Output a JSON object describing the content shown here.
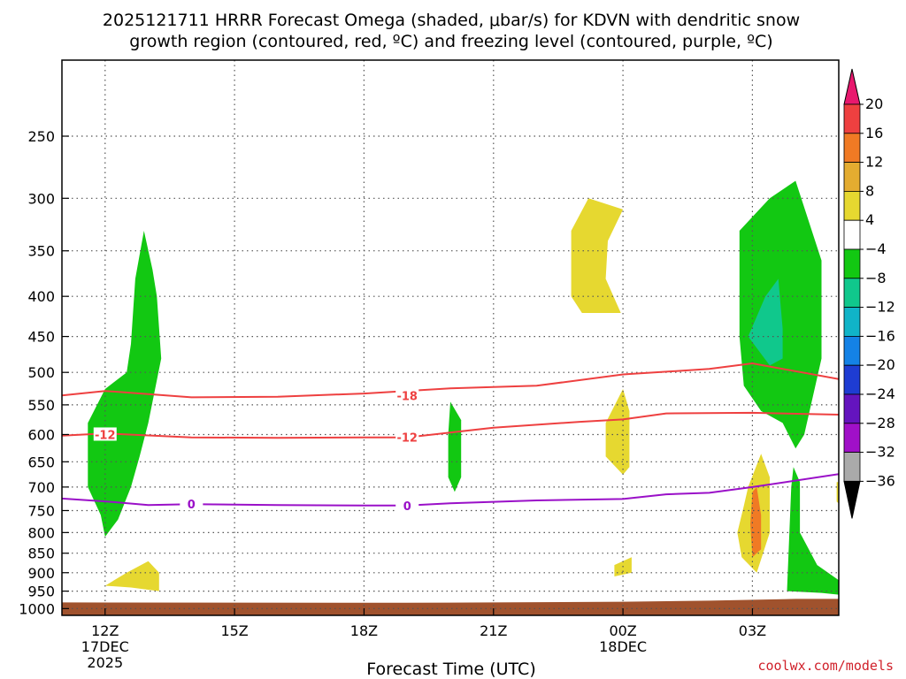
{
  "chart_data": {
    "type": "contour",
    "title_line1": "2025121711 HRRR Forecast Omega (shaded, μbar/s) for KDVN with dendritic snow",
    "title_line2": "growth region (contoured, red, ºC) and freezing level (contoured, purple, ºC)",
    "xlabel": "Forecast Time (UTC)",
    "x_ticks": [
      {
        "h": 0,
        "label": "12Z",
        "sub1": "17DEC",
        "sub2": "2025"
      },
      {
        "h": 3,
        "label": "15Z",
        "sub1": "",
        "sub2": ""
      },
      {
        "h": 6,
        "label": "18Z",
        "sub1": "",
        "sub2": ""
      },
      {
        "h": 9,
        "label": "21Z",
        "sub1": "",
        "sub2": ""
      },
      {
        "h": 12,
        "label": "00Z",
        "sub1": "18DEC",
        "sub2": ""
      },
      {
        "h": 15,
        "label": "03Z",
        "sub1": "",
        "sub2": ""
      }
    ],
    "xlim": [
      -1,
      17
    ],
    "y_ticks": [
      250,
      300,
      350,
      400,
      450,
      500,
      550,
      600,
      650,
      700,
      750,
      800,
      850,
      900,
      950,
      1000
    ],
    "ylim": [
      200,
      1020
    ],
    "yscale": "log",
    "grid": true,
    "colorbar": {
      "labels": [
        "20",
        "16",
        "12",
        "8",
        "4",
        "−4",
        "−8",
        "−12",
        "−16",
        "−20",
        "−24",
        "−28",
        "−32",
        "−36"
      ],
      "colors": [
        "#e8186e",
        "#ee4040",
        "#f07a24",
        "#e4ac30",
        "#e6d830",
        "#ffffff",
        "#12c812",
        "#10c88c",
        "#10b4c8",
        "#1482e6",
        "#1e3cd2",
        "#6414be",
        "#a010c8",
        "#aaaaaa",
        "#000000"
      ]
    },
    "contours": [
      {
        "level": "-18",
        "color": "#ee4040",
        "points": [
          [
            -1,
            535
          ],
          [
            0,
            528
          ],
          [
            2,
            538
          ],
          [
            4,
            537
          ],
          [
            6,
            532
          ],
          [
            8,
            524
          ],
          [
            10,
            520
          ],
          [
            12,
            503
          ],
          [
            14,
            495
          ],
          [
            15,
            487
          ],
          [
            17,
            510
          ]
        ],
        "label_h": 7,
        "label_p": 535
      },
      {
        "level": "-12",
        "color": "#ee4040",
        "points": [
          [
            -1,
            602
          ],
          [
            0,
            598
          ],
          [
            2,
            605
          ],
          [
            4,
            606
          ],
          [
            6,
            605
          ],
          [
            7,
            605
          ],
          [
            9,
            588
          ],
          [
            11,
            578
          ],
          [
            12,
            574
          ],
          [
            13,
            564
          ],
          [
            15,
            563
          ],
          [
            17,
            566
          ]
        ],
        "label_h": 0,
        "label_p": 600
      },
      {
        "level": "-12",
        "color": "#ee4040",
        "points": [],
        "label_h": 7,
        "label_p": 605
      },
      {
        "level": "0",
        "color": "#9a10c8",
        "points": [
          [
            -1,
            724
          ],
          [
            0,
            730
          ],
          [
            1,
            738
          ],
          [
            2,
            736
          ],
          [
            4,
            738
          ],
          [
            6,
            739
          ],
          [
            7,
            739
          ],
          [
            8,
            734
          ],
          [
            10,
            728
          ],
          [
            12,
            725
          ],
          [
            13,
            715
          ],
          [
            14,
            712
          ],
          [
            15,
            700
          ],
          [
            17,
            674
          ]
        ],
        "label_h": 2,
        "label_p": 736
      },
      {
        "level": "0",
        "color": "#9a10c8",
        "points": [],
        "label_h": 7,
        "label_p": 739
      }
    ],
    "shaded_regions": [
      {
        "color": "#12c812",
        "points": [
          [
            -0.1,
            760
          ],
          [
            0,
            810
          ],
          [
            0.3,
            770
          ],
          [
            0.6,
            700
          ],
          [
            0.8,
            640
          ],
          [
            1.0,
            580
          ],
          [
            1.3,
            480
          ],
          [
            1.2,
            400
          ],
          [
            1.1,
            370
          ],
          [
            0.9,
            330
          ],
          [
            0.7,
            380
          ],
          [
            0.6,
            460
          ],
          [
            0.5,
            500
          ],
          [
            0,
            525
          ],
          [
            -0.4,
            580
          ],
          [
            -0.4,
            700
          ]
        ]
      },
      {
        "color": "#e6d830",
        "points": [
          [
            0,
            935
          ],
          [
            0.6,
            940
          ],
          [
            1.25,
            950
          ],
          [
            1.25,
            900
          ],
          [
            1.0,
            870
          ],
          [
            0.5,
            900
          ]
        ]
      },
      {
        "color": "#12c812",
        "points": [
          [
            8.0,
            545
          ],
          [
            8.25,
            575
          ],
          [
            8.25,
            680
          ],
          [
            8.1,
            710
          ],
          [
            7.95,
            680
          ],
          [
            7.95,
            600
          ]
        ]
      },
      {
        "color": "#e6d830",
        "points": [
          [
            10.8,
            330
          ],
          [
            11.2,
            300
          ],
          [
            12.0,
            310
          ],
          [
            11.65,
            340
          ],
          [
            11.6,
            380
          ],
          [
            11.95,
            420
          ],
          [
            11.05,
            420
          ],
          [
            10.8,
            400
          ]
        ]
      },
      {
        "color": "#e6d830",
        "points": [
          [
            12.0,
            525
          ],
          [
            12.15,
            560
          ],
          [
            12.15,
            660
          ],
          [
            12.0,
            675
          ],
          [
            11.6,
            640
          ],
          [
            11.6,
            580
          ]
        ]
      },
      {
        "color": "#e6d830",
        "points": [
          [
            11.8,
            880
          ],
          [
            12.2,
            860
          ],
          [
            12.2,
            900
          ],
          [
            11.8,
            910
          ]
        ]
      },
      {
        "color": "#12c812",
        "points": [
          [
            14.7,
            330
          ],
          [
            15.4,
            300
          ],
          [
            16.0,
            285
          ],
          [
            16.6,
            360
          ],
          [
            16.6,
            480
          ],
          [
            16.2,
            600
          ],
          [
            16.0,
            625
          ],
          [
            15.7,
            580
          ],
          [
            15.2,
            560
          ],
          [
            14.8,
            520
          ],
          [
            14.7,
            450
          ]
        ]
      },
      {
        "color": "#10c88c",
        "points": [
          [
            15.6,
            380
          ],
          [
            15.7,
            440
          ],
          [
            15.7,
            480
          ],
          [
            15.4,
            490
          ],
          [
            14.9,
            450
          ],
          [
            15.3,
            400
          ]
        ]
      },
      {
        "color": "#e6d830",
        "points": [
          [
            14.9,
            700
          ],
          [
            15.2,
            635
          ],
          [
            15.4,
            680
          ],
          [
            15.4,
            800
          ],
          [
            15.1,
            900
          ],
          [
            14.75,
            860
          ],
          [
            14.65,
            800
          ],
          [
            14.8,
            740
          ]
        ]
      },
      {
        "color": "#f07a24",
        "points": [
          [
            15.0,
            710
          ],
          [
            15.1,
            700
          ],
          [
            15.2,
            760
          ],
          [
            15.2,
            840
          ],
          [
            15.0,
            860
          ],
          [
            14.95,
            780
          ]
        ]
      },
      {
        "color": "#12c812",
        "points": [
          [
            15.95,
            660
          ],
          [
            16.1,
            690
          ],
          [
            16.1,
            800
          ],
          [
            16.5,
            880
          ],
          [
            17.0,
            920
          ],
          [
            17.0,
            960
          ],
          [
            16.6,
            955
          ],
          [
            15.8,
            950
          ],
          [
            15.9,
            700
          ]
        ]
      },
      {
        "color": "#e6d830",
        "points": [
          [
            16.95,
            690
          ],
          [
            17.0,
            690
          ],
          [
            17.0,
            735
          ],
          [
            16.95,
            730
          ]
        ]
      }
    ],
    "ground": {
      "color": "#a0522d",
      "points": [
        [
          -1,
          982
        ],
        [
          6,
          983
        ],
        [
          7,
          983
        ],
        [
          9,
          982
        ],
        [
          12,
          980
        ],
        [
          14,
          977
        ],
        [
          16,
          972
        ],
        [
          17,
          972
        ]
      ]
    }
  },
  "credit": "coolwx.com/models"
}
